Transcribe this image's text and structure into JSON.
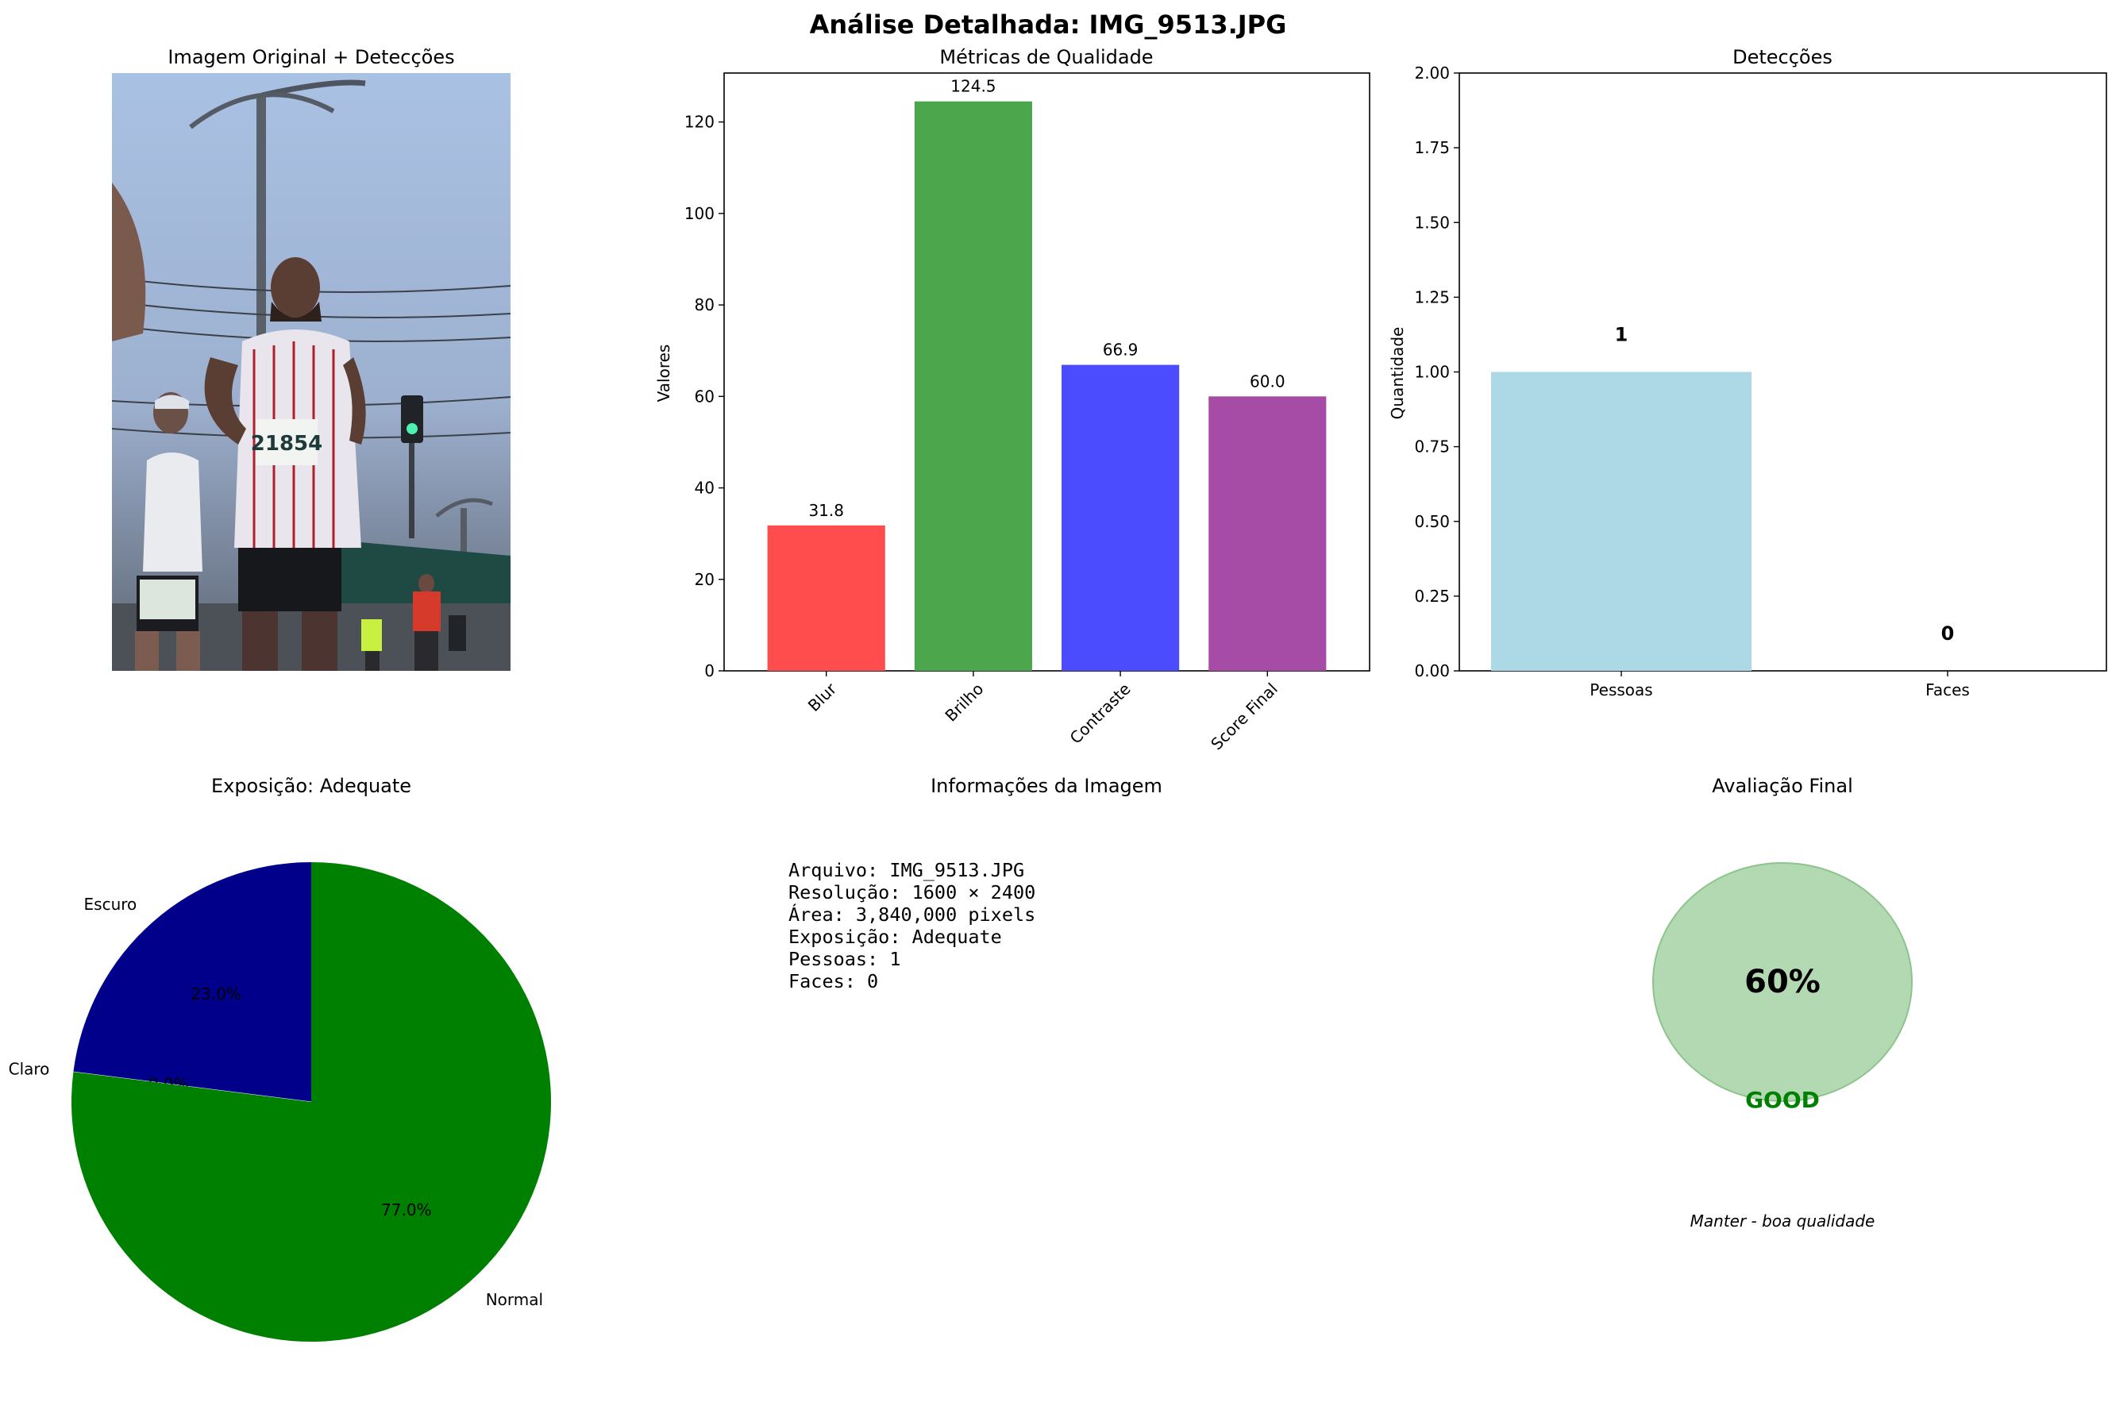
{
  "suptitle": "Análise Detalhada: IMG_9513.JPG",
  "colors": {
    "blur": "#ff4c4c",
    "brilho": "#4ca64c",
    "contraste": "#4c4cff",
    "score": "#a64ca6",
    "pessoas": "#add8e6",
    "escuro": "#00008b",
    "claro": "#ffffff",
    "normal": "#008000",
    "score_circle": "#b3d9b3",
    "score_circle_edge": "#8cc48c",
    "good": "#008000"
  },
  "image_panel": {
    "title": "Imagem Original + Detecções",
    "alt_description": "runner photo with bib numbers"
  },
  "chart_data": [
    {
      "type": "bar",
      "title": "Métricas de Qualidade",
      "xlabel": "",
      "ylabel": "Valores",
      "categories": [
        "Blur",
        "Brilho",
        "Contraste",
        "Score Final"
      ],
      "values": [
        31.8,
        124.5,
        66.9,
        60.0
      ],
      "value_labels": [
        "31.8",
        "124.5",
        "66.9",
        "60.0"
      ],
      "ylim": [
        0,
        130.7
      ],
      "yticks": [
        0,
        20,
        40,
        60,
        80,
        100,
        120
      ],
      "grid": false
    },
    {
      "type": "bar",
      "title": "Detecções",
      "xlabel": "",
      "ylabel": "Quantidade",
      "categories": [
        "Pessoas",
        "Faces"
      ],
      "values": [
        1,
        0
      ],
      "value_labels": [
        "1",
        "0"
      ],
      "ylim": [
        0,
        2
      ],
      "yticks": [
        "0.00",
        "0.25",
        "0.50",
        "0.75",
        "1.00",
        "1.25",
        "1.50",
        "1.75",
        "2.00"
      ],
      "grid": false
    },
    {
      "type": "pie",
      "title": "Exposição: Adequate",
      "labels": [
        "Escuro",
        "Claro",
        "Normal"
      ],
      "values": [
        23.0,
        0.0,
        77.0
      ],
      "pct_labels": [
        "23.0%",
        "0.0%",
        "77.0%"
      ],
      "start_angle": 90
    }
  ],
  "info_panel": {
    "title": "Informações da Imagem",
    "lines": [
      "Arquivo: IMG_9513.JPG",
      "Resolução: 1600 × 2400",
      "Área: 3,840,000 pixels",
      "Exposição: Adequate",
      "Pessoas: 1",
      "Faces: 0"
    ]
  },
  "final_panel": {
    "title": "Avaliação Final",
    "score": 60,
    "score_text": "60%",
    "rating": "GOOD",
    "recommendation": "Manter - boa qualidade"
  }
}
